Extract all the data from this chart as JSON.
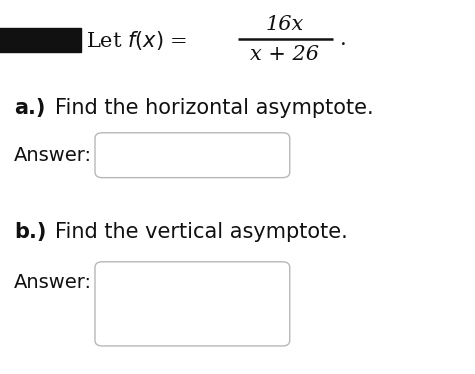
{
  "bg_color": "#ffffff",
  "text_color": "#111111",
  "redacted_color": "#111111",
  "answer_box_color": "#ffffff",
  "answer_box_border": "#b8b8b8",
  "part_a_label": "a.)",
  "part_a_text": " Find the horizontal asymptote.",
  "part_b_label": "b.)",
  "part_b_text": " Find the vertical asymptote.",
  "answer_label": "Answer:",
  "numerator": "16x",
  "denominator": "x + 26",
  "period": ".",
  "fontsize_main": 15,
  "fontsize_parts": 15,
  "fontsize_answer": 14
}
